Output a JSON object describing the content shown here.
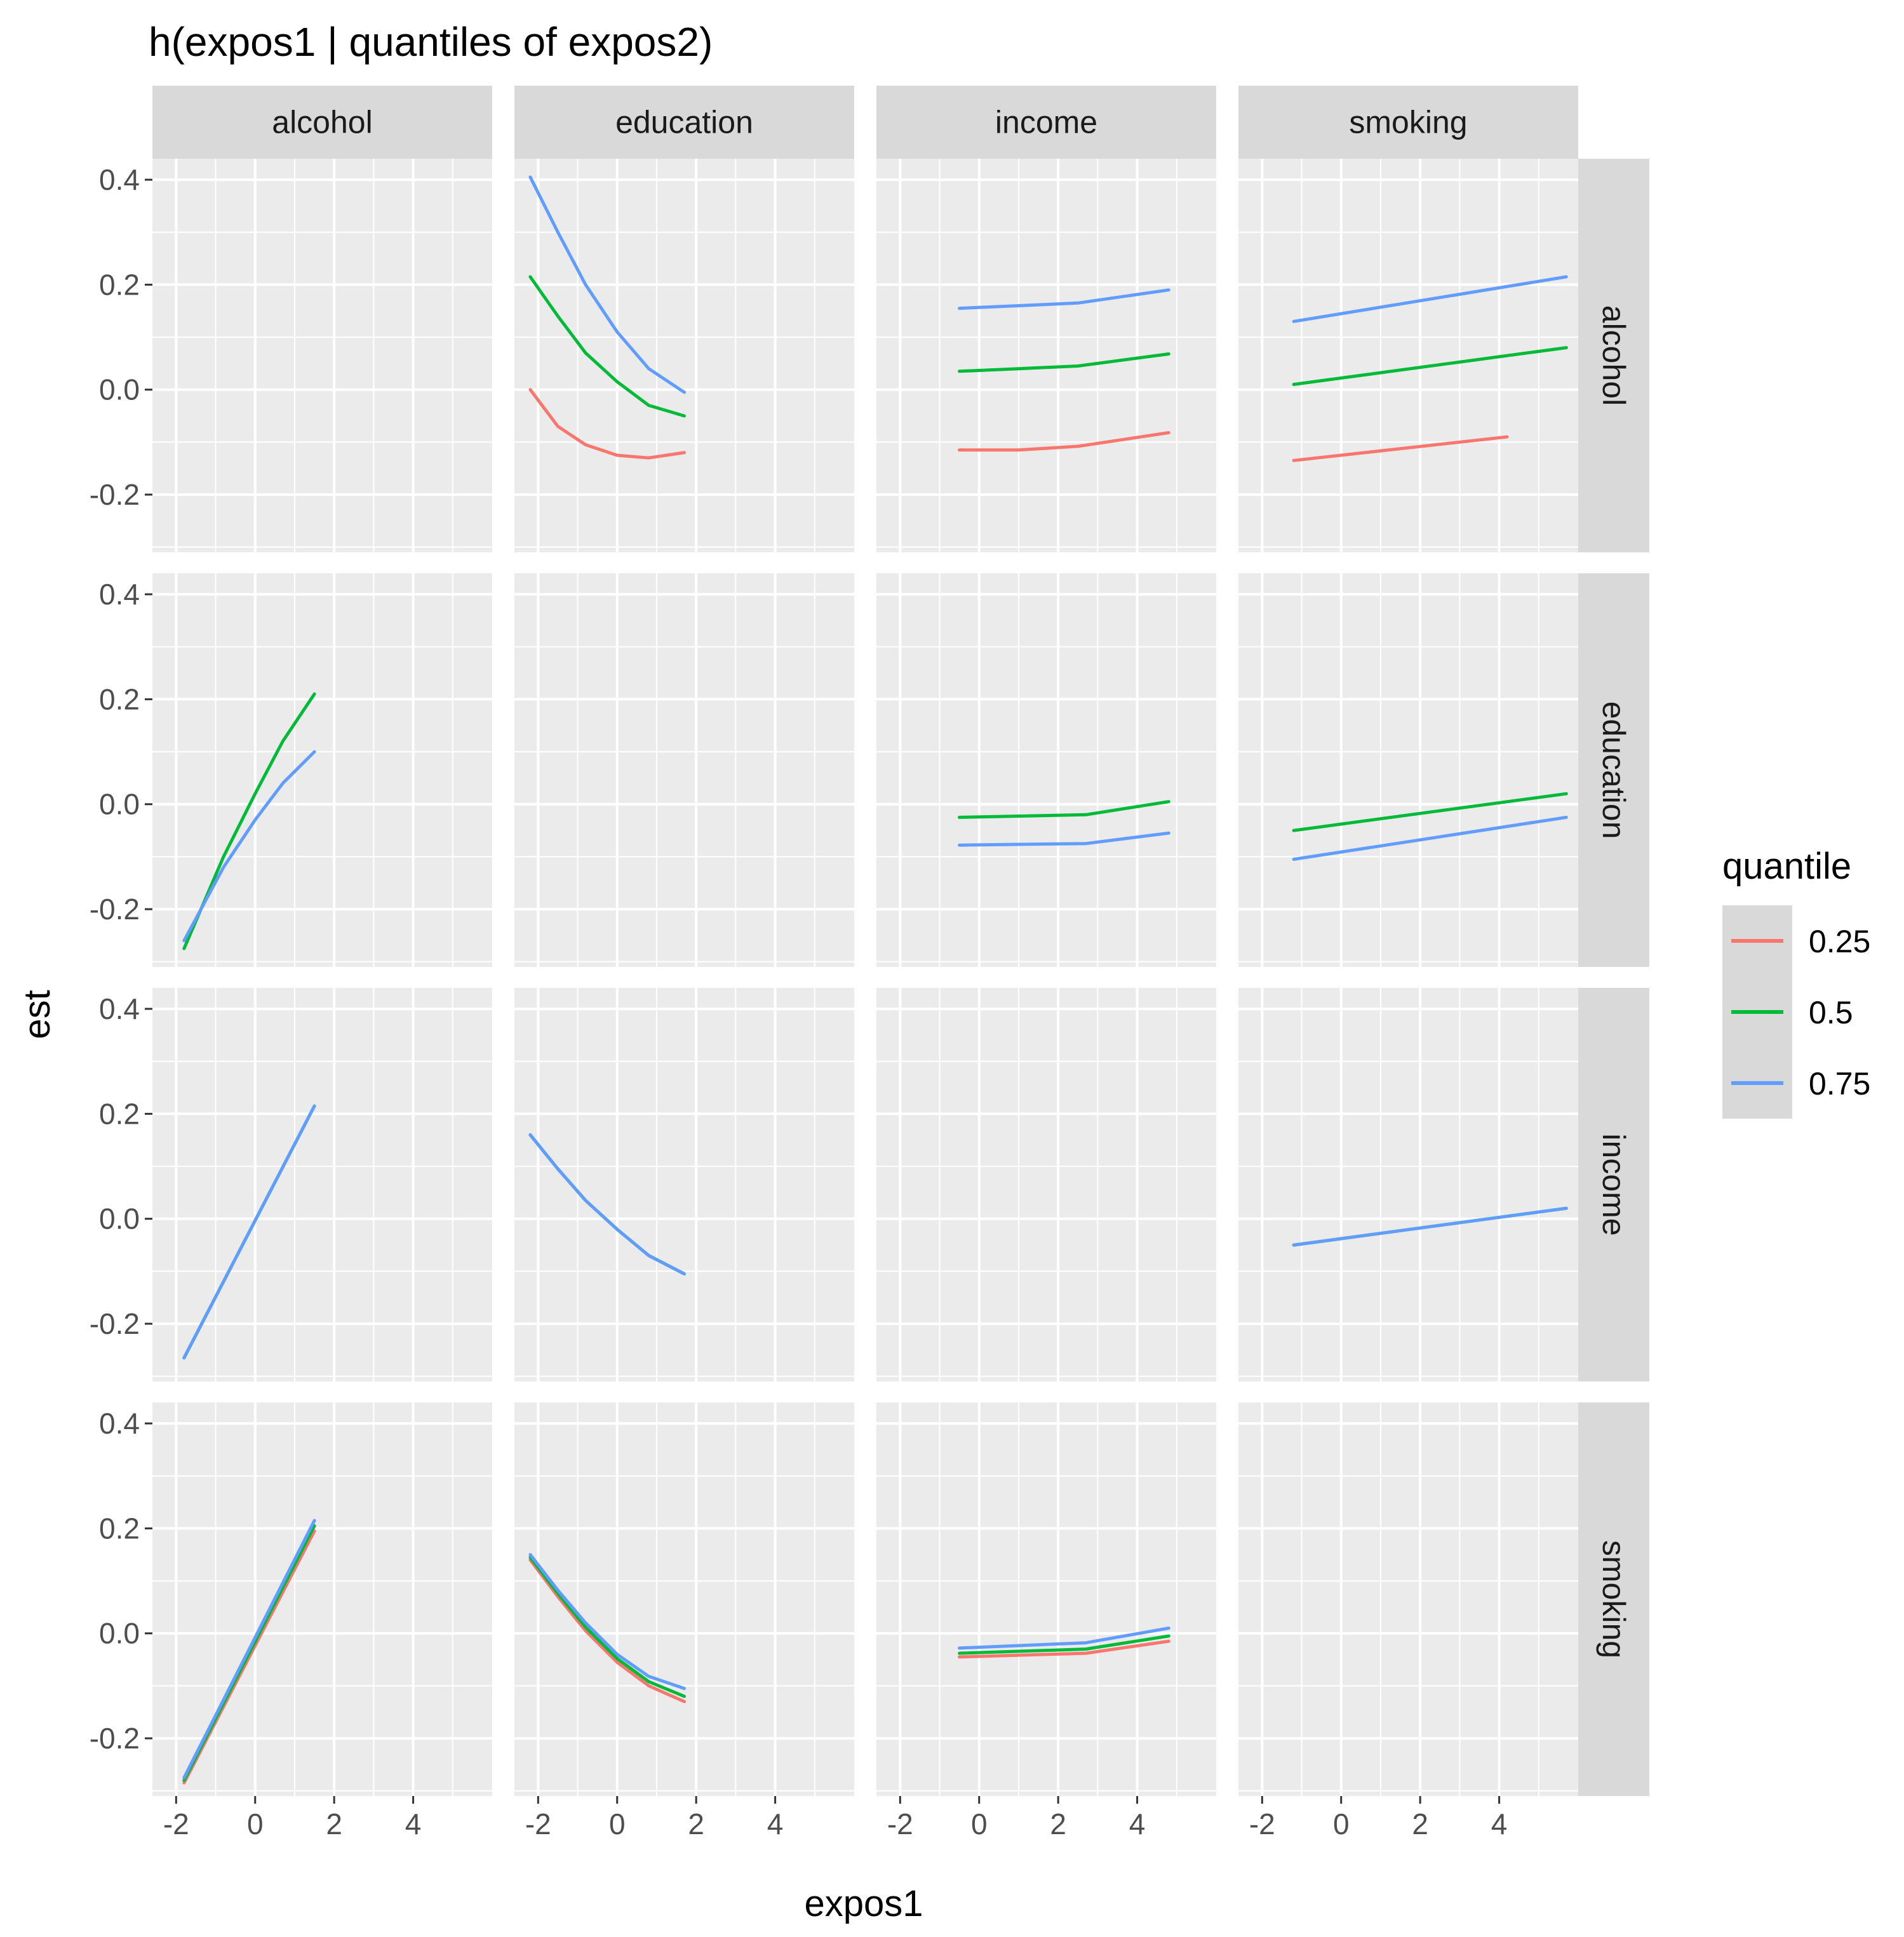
{
  "chart_data": {
    "type": "line",
    "title": "h(expos1 | quantiles of expos2)",
    "xlabel": "expos1",
    "ylabel": "est",
    "xlim": [
      -2.6,
      6.0
    ],
    "ylim": [
      -0.31,
      0.44
    ],
    "x_ticks": [
      -2,
      0,
      2,
      4
    ],
    "x_tick_labels": [
      "-2",
      "0",
      "2",
      "4"
    ],
    "y_ticks": [
      -0.2,
      0.0,
      0.2,
      0.4
    ],
    "y_tick_labels": [
      "-0.2",
      "0.0",
      "0.2",
      "0.4"
    ],
    "grid": true,
    "col_facets": [
      "alcohol",
      "education",
      "income",
      "smoking"
    ],
    "row_facets": [
      "alcohol",
      "education",
      "income",
      "smoking"
    ],
    "legend": {
      "title": "quantile",
      "position": "right",
      "entries": [
        {
          "label": "0.25",
          "color": "#F8766D"
        },
        {
          "label": "0.5",
          "color": "#00BA38"
        },
        {
          "label": "0.75",
          "color": "#619CFF"
        }
      ]
    },
    "panels": [
      {
        "row": "alcohol",
        "col": "education",
        "series": [
          {
            "quantile": "0.25",
            "x": [
              -2.2,
              -1.5,
              -0.8,
              0.0,
              0.8,
              1.7
            ],
            "y": [
              0.0,
              -0.07,
              -0.105,
              -0.125,
              -0.13,
              -0.12
            ]
          },
          {
            "quantile": "0.5",
            "x": [
              -2.2,
              -1.5,
              -0.8,
              0.0,
              0.8,
              1.7
            ],
            "y": [
              0.215,
              0.14,
              0.07,
              0.015,
              -0.03,
              -0.05
            ]
          },
          {
            "quantile": "0.75",
            "x": [
              -2.2,
              -1.5,
              -0.8,
              0.0,
              0.8,
              1.7
            ],
            "y": [
              0.405,
              0.3,
              0.2,
              0.11,
              0.04,
              -0.005
            ]
          }
        ]
      },
      {
        "row": "alcohol",
        "col": "income",
        "series": [
          {
            "quantile": "0.25",
            "x": [
              -0.5,
              1.0,
              2.5,
              4.8
            ],
            "y": [
              -0.115,
              -0.115,
              -0.108,
              -0.082
            ]
          },
          {
            "quantile": "0.5",
            "x": [
              -0.5,
              1.0,
              2.5,
              4.8
            ],
            "y": [
              0.035,
              0.04,
              0.045,
              0.068
            ]
          },
          {
            "quantile": "0.75",
            "x": [
              -0.5,
              1.0,
              2.5,
              4.8
            ],
            "y": [
              0.155,
              0.16,
              0.165,
              0.19
            ]
          }
        ]
      },
      {
        "row": "alcohol",
        "col": "smoking",
        "series": [
          {
            "quantile": "0.25",
            "x": [
              -1.2,
              4.2
            ],
            "y": [
              -0.135,
              -0.09
            ]
          },
          {
            "quantile": "0.5",
            "x": [
              -1.2,
              5.7
            ],
            "y": [
              0.01,
              0.08
            ]
          },
          {
            "quantile": "0.75",
            "x": [
              -1.2,
              5.7
            ],
            "y": [
              0.13,
              0.215
            ]
          }
        ]
      },
      {
        "row": "education",
        "col": "alcohol",
        "series": [
          {
            "quantile": "0.5",
            "x": [
              -1.8,
              -0.8,
              0.0,
              0.7,
              1.5
            ],
            "y": [
              -0.275,
              -0.1,
              0.02,
              0.12,
              0.21
            ]
          },
          {
            "quantile": "0.75",
            "x": [
              -1.8,
              -0.8,
              0.0,
              0.7,
              1.5
            ],
            "y": [
              -0.26,
              -0.12,
              -0.03,
              0.04,
              0.1
            ]
          }
        ]
      },
      {
        "row": "education",
        "col": "income",
        "series": [
          {
            "quantile": "0.5",
            "x": [
              -0.5,
              2.7,
              4.8
            ],
            "y": [
              -0.025,
              -0.02,
              0.005
            ]
          },
          {
            "quantile": "0.75",
            "x": [
              -0.5,
              2.7,
              4.8
            ],
            "y": [
              -0.078,
              -0.075,
              -0.055
            ]
          }
        ]
      },
      {
        "row": "education",
        "col": "smoking",
        "series": [
          {
            "quantile": "0.5",
            "x": [
              -1.2,
              5.7
            ],
            "y": [
              -0.05,
              0.02
            ]
          },
          {
            "quantile": "0.75",
            "x": [
              -1.2,
              5.7
            ],
            "y": [
              -0.105,
              -0.025
            ]
          }
        ]
      },
      {
        "row": "income",
        "col": "alcohol",
        "series": [
          {
            "quantile": "0.5",
            "x": [
              -1.8,
              1.5
            ],
            "y": [
              -0.265,
              0.215
            ]
          },
          {
            "quantile": "0.75",
            "x": [
              -1.8,
              1.5
            ],
            "y": [
              -0.265,
              0.215
            ]
          }
        ]
      },
      {
        "row": "income",
        "col": "education",
        "series": [
          {
            "quantile": "0.5",
            "x": [
              -2.2,
              -1.5,
              -0.8,
              0.0,
              0.8,
              1.7
            ],
            "y": [
              0.16,
              0.095,
              0.035,
              -0.02,
              -0.07,
              -0.105
            ]
          },
          {
            "quantile": "0.75",
            "x": [
              -2.2,
              -1.5,
              -0.8,
              0.0,
              0.8,
              1.7
            ],
            "y": [
              0.16,
              0.095,
              0.035,
              -0.02,
              -0.07,
              -0.105
            ]
          }
        ]
      },
      {
        "row": "income",
        "col": "smoking",
        "series": [
          {
            "quantile": "0.5",
            "x": [
              -1.2,
              5.7
            ],
            "y": [
              -0.05,
              0.02
            ]
          },
          {
            "quantile": "0.75",
            "x": [
              -1.2,
              5.7
            ],
            "y": [
              -0.05,
              0.02
            ]
          }
        ]
      },
      {
        "row": "smoking",
        "col": "alcohol",
        "series": [
          {
            "quantile": "0.25",
            "x": [
              -1.8,
              1.5
            ],
            "y": [
              -0.285,
              0.195
            ]
          },
          {
            "quantile": "0.5",
            "x": [
              -1.8,
              1.5
            ],
            "y": [
              -0.28,
              0.205
            ]
          },
          {
            "quantile": "0.75",
            "x": [
              -1.8,
              1.5
            ],
            "y": [
              -0.275,
              0.215
            ]
          }
        ]
      },
      {
        "row": "smoking",
        "col": "education",
        "series": [
          {
            "quantile": "0.25",
            "x": [
              -2.2,
              -1.5,
              -0.8,
              0.0,
              0.8,
              1.7
            ],
            "y": [
              0.14,
              0.07,
              0.005,
              -0.055,
              -0.1,
              -0.13
            ]
          },
          {
            "quantile": "0.5",
            "x": [
              -2.2,
              -1.5,
              -0.8,
              0.0,
              0.8,
              1.7
            ],
            "y": [
              0.145,
              0.076,
              0.012,
              -0.048,
              -0.092,
              -0.12
            ]
          },
          {
            "quantile": "0.75",
            "x": [
              -2.2,
              -1.5,
              -0.8,
              0.0,
              0.8,
              1.7
            ],
            "y": [
              0.15,
              0.082,
              0.02,
              -0.04,
              -0.082,
              -0.105
            ]
          }
        ]
      },
      {
        "row": "smoking",
        "col": "income",
        "series": [
          {
            "quantile": "0.25",
            "x": [
              -0.5,
              2.7,
              4.8
            ],
            "y": [
              -0.045,
              -0.038,
              -0.015
            ]
          },
          {
            "quantile": "0.5",
            "x": [
              -0.5,
              2.7,
              4.8
            ],
            "y": [
              -0.038,
              -0.03,
              -0.005
            ]
          },
          {
            "quantile": "0.75",
            "x": [
              -0.5,
              2.7,
              4.8
            ],
            "y": [
              -0.028,
              -0.018,
              0.01
            ]
          }
        ]
      }
    ]
  }
}
